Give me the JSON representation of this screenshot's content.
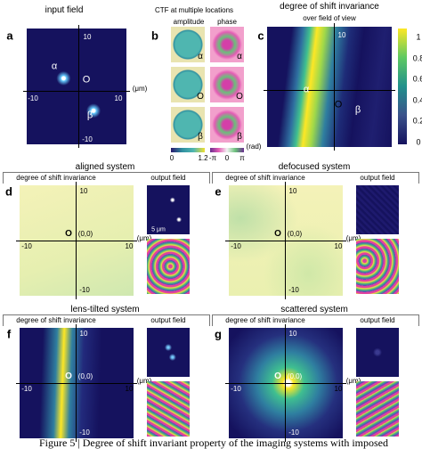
{
  "panels": {
    "a": {
      "label": "a",
      "title": "input field",
      "axis": {
        "top": "10",
        "bottom": "-10",
        "left": "-10",
        "right": "10",
        "unit": "(μm)"
      },
      "markers": [
        "α",
        "O",
        "β"
      ]
    },
    "b": {
      "label": "b",
      "title": "CTF at multiple locations",
      "columns": [
        "amplitude",
        "phase"
      ],
      "tile_labels": [
        "α",
        "O",
        "β"
      ],
      "amplitude_scale": [
        "0",
        "1.2"
      ],
      "phase_scale": [
        "-π",
        "0",
        "π"
      ],
      "phase_unit": "(rad)"
    },
    "c": {
      "label": "c",
      "title": "degree of shift invariance",
      "subtitle": "over field of view",
      "axis": {
        "top": "10"
      },
      "markers": [
        "α",
        "O",
        "β"
      ],
      "colorbar": [
        "1",
        "0.8",
        "0.6",
        "0.4",
        "0.2",
        "0"
      ]
    },
    "d": {
      "label": "d",
      "system": "aligned  system",
      "header": [
        "degree of shift invariance",
        "output field"
      ],
      "axis": {
        "top": "10",
        "bottom": "-10",
        "left": "-10",
        "right": "10",
        "unit": "(μm)"
      },
      "origin": "O",
      "origin_coords": "(0,0)",
      "scale_bar": "5 μm"
    },
    "e": {
      "label": "e",
      "system": "defocused system",
      "header": [
        "degree of shift invariance",
        "output field"
      ],
      "axis": {
        "top": "10",
        "bottom": "-10",
        "left": "-10",
        "right": "10",
        "unit": "(μm)"
      },
      "origin": "O",
      "origin_coords": "(0,0)"
    },
    "f": {
      "label": "f",
      "system": "lens-tilted system",
      "header": [
        "degree of shift invariance",
        "output field"
      ],
      "axis": {
        "top": "10",
        "bottom": "-10",
        "left": "-10",
        "right": "10",
        "unit": "(μm)"
      },
      "origin": "O",
      "origin_coords": "(0,0)"
    },
    "g": {
      "label": "g",
      "system": "scattered system",
      "header": [
        "degree of shift invariance",
        "output field"
      ],
      "axis": {
        "top": "10",
        "bottom": "-10",
        "left": "-10",
        "right": "10",
        "unit": "(μm)"
      },
      "origin": "O",
      "origin_coords": "(0,0)"
    }
  },
  "caption": "Figure 5 | Degree of shift invariant property of the imaging systems with imposed"
}
